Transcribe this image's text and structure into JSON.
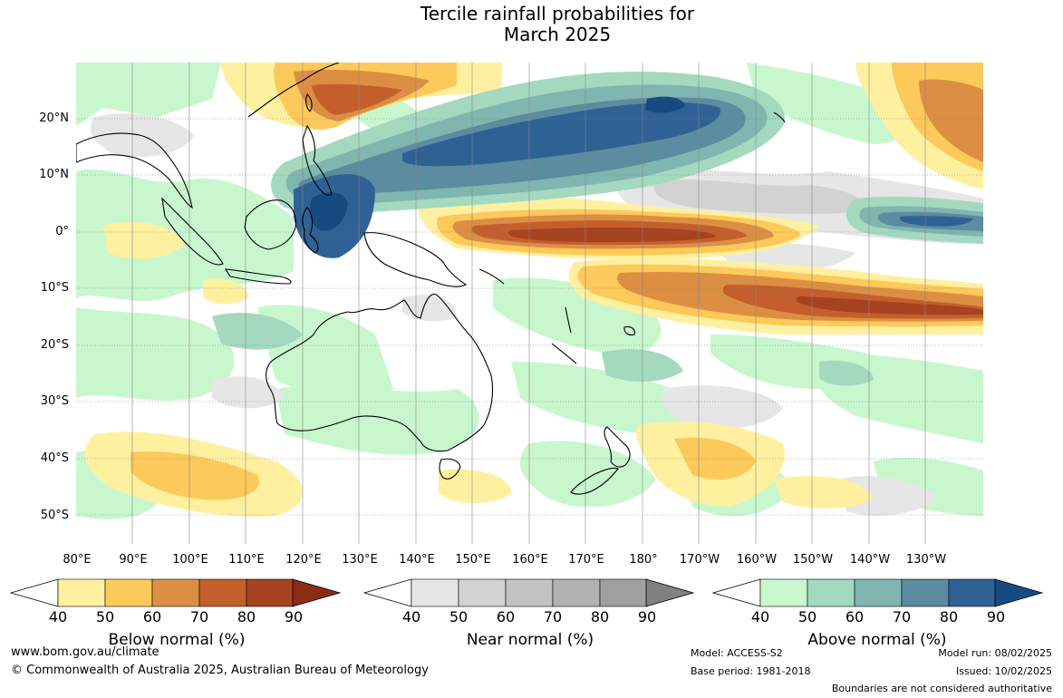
{
  "title": {
    "line1": "Tercile rainfall probabilities for",
    "line2": "March 2025"
  },
  "map": {
    "lat_labels": [
      "20°N",
      "10°N",
      "0°",
      "10°S",
      "20°S",
      "30°S",
      "40°S",
      "50°S"
    ],
    "lon_labels": [
      "80°E",
      "90°E",
      "100°E",
      "110°E",
      "120°E",
      "130°E",
      "140°E",
      "150°E",
      "160°E",
      "170°E",
      "180°",
      "170°W",
      "160°W",
      "150°W",
      "140°W",
      "130°W"
    ],
    "lon_range": [
      "75°E",
      "125°W"
    ],
    "lat_range": [
      "30°N",
      "55°S"
    ]
  },
  "legend": {
    "below": {
      "title": "Below normal (%)",
      "ticks": [
        "40",
        "50",
        "60",
        "70",
        "80",
        "90"
      ],
      "colors": [
        "#fff0a0",
        "#fdc95a",
        "#dc8f43",
        "#c45f2d",
        "#a74220",
        "#8a2c12"
      ]
    },
    "near": {
      "title": "Near normal (%)",
      "ticks": [
        "40",
        "50",
        "60",
        "70",
        "80",
        "90"
      ],
      "colors": [
        "#e6e6e6",
        "#d2d2d2",
        "#c2c2c2",
        "#b2b2b2",
        "#a0a0a0",
        "#808080"
      ]
    },
    "above": {
      "title": "Above normal (%)",
      "ticks": [
        "40",
        "50",
        "60",
        "70",
        "80",
        "90"
      ],
      "colors": [
        "#c8f7ce",
        "#a4d9bf",
        "#80b5b0",
        "#5b8c9f",
        "#2f6195",
        "#174a80"
      ]
    }
  },
  "footer": {
    "website": "www.bom.gov.au/climate",
    "copyright": "© Commonwealth of Australia 2025, Australian Bureau of Meteorology",
    "model": "Model: ACCESS-S2",
    "base_period": "Base period: 1981-2018",
    "model_run": "Model run: 08/02/2025",
    "issued": "Issued: 10/02/2025",
    "disclaimer": "Boundaries are not considered authoritative"
  }
}
